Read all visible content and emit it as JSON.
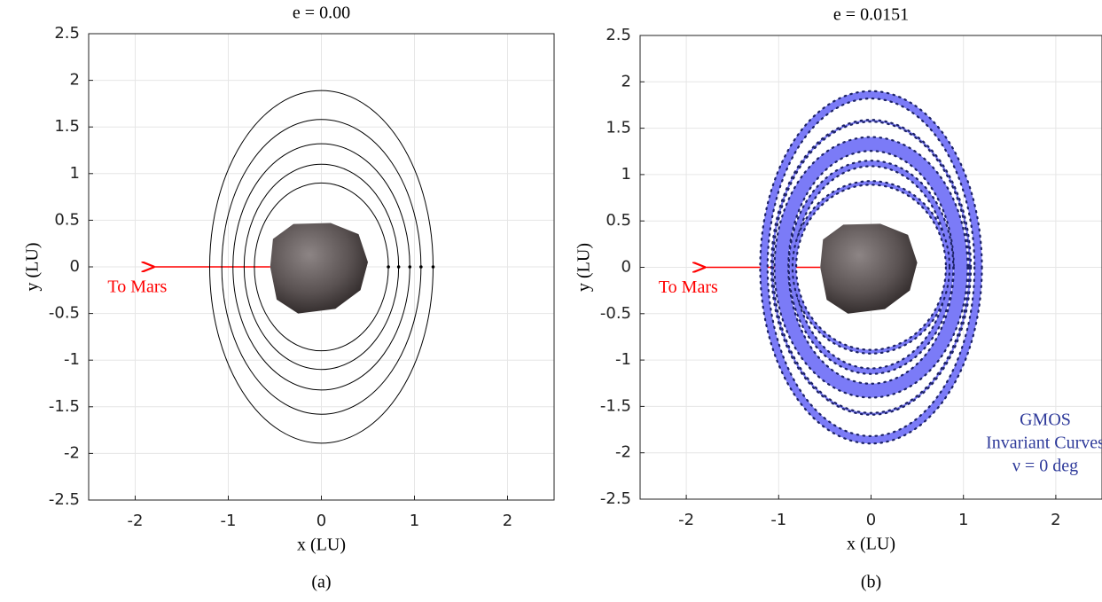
{
  "chart_data": [
    {
      "type": "orbit",
      "title": "e = 0.00",
      "caption": "(a)",
      "x_label": "x (LU)",
      "y_label": "y (LU)",
      "xlim": [
        -2.5,
        2.5
      ],
      "ylim": [
        -2.5,
        2.5
      ],
      "xticks": [
        -2,
        -1,
        0,
        1,
        2
      ],
      "yticks": [
        -2.5,
        -2,
        -1.5,
        -1,
        -0.5,
        0,
        0.5,
        1,
        1.5,
        2,
        2.5
      ],
      "grid": true,
      "color": "#000000",
      "orbits": [
        {
          "a": 1.2,
          "b": 1.89
        },
        {
          "a": 1.07,
          "b": 1.58
        },
        {
          "a": 0.95,
          "b": 1.32
        },
        {
          "a": 0.83,
          "b": 1.1
        },
        {
          "a": 0.72,
          "b": 0.9
        }
      ],
      "annotation": {
        "text": "To Mars",
        "color": "#ff0000",
        "arrow_from": [
          -0.55,
          0
        ],
        "arrow_to": [
          -1.82,
          0
        ]
      }
    },
    {
      "type": "orbit_band",
      "title": "e = 0.0151",
      "caption": "(b)",
      "x_label": "x (LU)",
      "y_label": "y (LU)",
      "xlim": [
        -2.5,
        2.5
      ],
      "ylim": [
        -2.5,
        2.5
      ],
      "xticks": [
        -2,
        -1,
        0,
        1,
        2
      ],
      "yticks": [
        -2.5,
        -2,
        -1.5,
        -1,
        -0.5,
        0,
        0.5,
        1,
        1.5,
        2,
        2.5
      ],
      "grid": true,
      "color": "#7b7bf7",
      "orbits": [
        {
          "a": 1.16,
          "b": 1.86,
          "width": 0.08
        },
        {
          "a": 1.07,
          "b": 1.58,
          "width": 0.02
        },
        {
          "a": 0.97,
          "b": 1.33,
          "width": 0.15
        },
        {
          "a": 0.86,
          "b": 1.12,
          "width": 0.06
        },
        {
          "a": 0.83,
          "b": 0.91,
          "width": 0.04
        }
      ],
      "annotation": {
        "text": "To Mars",
        "color": "#ff0000",
        "arrow_from": [
          -0.55,
          0
        ],
        "arrow_to": [
          -1.82,
          0
        ]
      },
      "legend_text": [
        "GMOS",
        "Invariant Curves",
        "ν = 0 deg"
      ],
      "legend_color": "#2e3a9a"
    }
  ]
}
